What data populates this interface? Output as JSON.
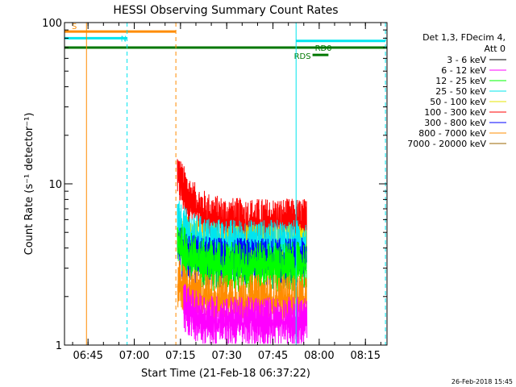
{
  "chart_data": {
    "type": "line",
    "title": "HESSI Observing Summary Count Rates",
    "xlabel": "Start Time (21-Feb-18 06:37:22)",
    "ylabel": "Count Rate (s⁻¹ detector⁻¹)",
    "yscale": "log",
    "ylim": [
      1,
      100
    ],
    "x_range_minutes": [
      "06:37:22",
      "08:22:00"
    ],
    "x_ticks": [
      "06:45",
      "07:00",
      "07:15",
      "07:30",
      "07:45",
      "08:00",
      "08:15"
    ],
    "y_ticks": [
      "1",
      "10",
      "100"
    ],
    "footer": "26-Feb-2018 15:45",
    "legend": {
      "header_line1": "Det 1,3, FDecim 4,",
      "header_line2": "Att 0",
      "placement": "right",
      "entries": [
        {
          "label": "3 - 6 keV",
          "color": "#000000"
        },
        {
          "label": "6 - 12 keV",
          "color": "#ff00ff"
        },
        {
          "label": "12 - 25 keV",
          "color": "#00ff00"
        },
        {
          "label": "25 - 50 keV",
          "color": "#00e5ee"
        },
        {
          "label": "50 - 100 keV",
          "color": "#e6e600"
        },
        {
          "label": "100 - 300 keV",
          "color": "#ff0000"
        },
        {
          "label": "300 - 800 keV",
          "color": "#0000ff"
        },
        {
          "label": "800 - 7000 keV",
          "color": "#ff8c00"
        },
        {
          "label": "7000 - 20000 keV",
          "color": "#996600"
        }
      ]
    },
    "bars": [
      {
        "label": "S",
        "start": "06:37:22",
        "end": "07:13:30",
        "y": 88,
        "color": "#ff8c00"
      },
      {
        "label": "N",
        "start": "06:37:22",
        "end": "06:57:40",
        "y": 80,
        "color": "#00e5ee"
      },
      {
        "label": "",
        "start": "07:52:30",
        "end": "08:21:30",
        "y": 77,
        "color": "#00e5ee"
      },
      {
        "label": "",
        "start": "06:37:22",
        "end": "08:22:00",
        "y": 70,
        "color": "#007700"
      },
      {
        "label": "RD0",
        "start": "07:57:50",
        "end": "08:03:00",
        "y": 63,
        "color": "#007700"
      }
    ],
    "bar_label_RDS": "RDS",
    "vertical_lines": [
      {
        "time": "06:44:30",
        "style": "solid",
        "color": "#ff8c00"
      },
      {
        "time": "06:57:40",
        "style": "dashed",
        "color": "#00e5ee"
      },
      {
        "time": "07:13:30",
        "style": "dashed",
        "color": "#ff8c00"
      },
      {
        "time": "07:52:30",
        "style": "solid",
        "color": "#00e5ee"
      },
      {
        "time": "08:21:30",
        "style": "dashed",
        "color": "#00e5ee"
      }
    ],
    "series": [
      {
        "name": "100 - 300 keV",
        "color": "#ff0000",
        "start": "07:14",
        "end": "07:56",
        "peak": 13,
        "level": 6.5
      },
      {
        "name": "50 - 100 keV",
        "color": "#e6e600",
        "start": "07:14",
        "end": "07:56",
        "peak": 6,
        "level": 4.5
      },
      {
        "name": "25 - 50 keV",
        "color": "#00e5ee",
        "start": "07:14",
        "end": "07:56",
        "peak": 6.5,
        "level": 4.8
      },
      {
        "name": "300 - 800 keV",
        "color": "#0000ff",
        "start": "07:14",
        "end": "07:56",
        "peak": 4.5,
        "level": 3.7
      },
      {
        "name": "12 - 25 keV",
        "color": "#00ff00",
        "start": "07:14",
        "end": "07:56",
        "peak": 5,
        "level": 3.5
      },
      {
        "name": "800 - 7000 keV",
        "color": "#ff8c00",
        "start": "07:14",
        "end": "07:56",
        "peak": 2.8,
        "level": 2.2
      },
      {
        "name": "6 - 12 keV",
        "color": "#ff00ff",
        "start": "07:16",
        "end": "07:56",
        "peak": 2,
        "level": 1.6
      }
    ]
  }
}
